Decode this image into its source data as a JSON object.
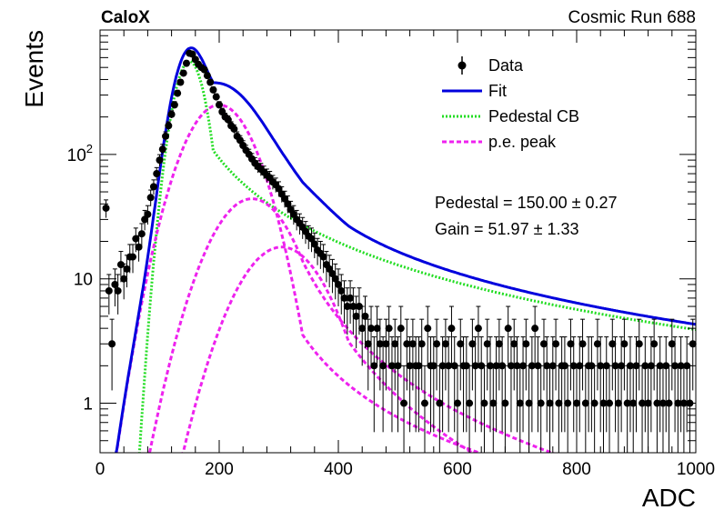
{
  "header": {
    "left_label": "CaloX",
    "right_label": "Cosmic Run 688"
  },
  "annotations": {
    "pedestal": "Pedestal = 150.00 ± 0.27",
    "gain": "Gain = 51.97 ± 1.33"
  },
  "colors": {
    "data": "#000000",
    "fit": "#0000dd",
    "pedestal": "#22dd22",
    "pe": "#ee22ee"
  },
  "chart_data": {
    "type": "scatter",
    "xlabel": "ADC",
    "ylabel": "Events",
    "xlim": [
      0,
      1000
    ],
    "ylim": [
      0.4,
      1000
    ],
    "yscale": "log",
    "grid": false,
    "legend_position": "top-right",
    "x_ticks": [
      "0",
      "200",
      "400",
      "600",
      "800",
      "1000"
    ],
    "y_ticks": [
      {
        "value": 1,
        "label": "1"
      },
      {
        "value": 10,
        "label": "10"
      }
    ],
    "y_tick_power": {
      "value": 100,
      "base": "10",
      "exp": "2"
    },
    "legend": [
      {
        "key": "data",
        "label": "Data"
      },
      {
        "key": "fit",
        "label": "Fit"
      },
      {
        "key": "pedestal",
        "label": "Pedestal CB"
      },
      {
        "key": "pe",
        "label": "p.e. peak"
      }
    ],
    "model": {
      "pedestal_mean": 150.0,
      "pedestal_sigma": 22,
      "pedestal_amplitude": 560,
      "pedestal_tail_offset": 40,
      "pedestal_tail_scale": 100,
      "pedestal_tail_power": 1.5,
      "gain": 51.97,
      "pe_peaks": [
        {
          "mean": 200,
          "sigma": 48,
          "amplitude": 250
        },
        {
          "mean": 255,
          "sigma": 56,
          "amplitude": 44
        },
        {
          "mean": 305,
          "sigma": 60,
          "amplitude": 18
        }
      ],
      "pe_tail_start": 340,
      "pe_tail_scale": 90,
      "pe_tail_power": 1.5
    },
    "series": [
      {
        "key": "data",
        "points": [
          [
            10,
            37
          ],
          [
            15,
            8
          ],
          [
            20,
            3
          ],
          [
            25,
            9
          ],
          [
            30,
            8
          ],
          [
            35,
            13
          ],
          [
            40,
            10
          ],
          [
            45,
            12
          ],
          [
            50,
            15
          ],
          [
            55,
            15
          ],
          [
            60,
            21
          ],
          [
            65,
            18
          ],
          [
            70,
            23
          ],
          [
            75,
            30
          ],
          [
            80,
            33
          ],
          [
            85,
            45
          ],
          [
            90,
            55
          ],
          [
            95,
            70
          ],
          [
            100,
            90
          ],
          [
            105,
            110
          ],
          [
            110,
            140
          ],
          [
            115,
            170
          ],
          [
            120,
            210
          ],
          [
            125,
            250
          ],
          [
            130,
            310
          ],
          [
            135,
            380
          ],
          [
            140,
            450
          ],
          [
            145,
            540
          ],
          [
            150,
            650
          ],
          [
            155,
            640
          ],
          [
            160,
            580
          ],
          [
            165,
            530
          ],
          [
            170,
            500
          ],
          [
            175,
            480
          ],
          [
            180,
            430
          ],
          [
            185,
            380
          ],
          [
            190,
            330
          ],
          [
            195,
            290
          ],
          [
            200,
            250
          ],
          [
            205,
            220
          ],
          [
            210,
            200
          ],
          [
            215,
            190
          ],
          [
            220,
            170
          ],
          [
            225,
            160
          ],
          [
            230,
            140
          ],
          [
            235,
            130
          ],
          [
            240,
            118
          ],
          [
            245,
            108
          ],
          [
            250,
            100
          ],
          [
            255,
            92
          ],
          [
            260,
            85
          ],
          [
            265,
            80
          ],
          [
            270,
            76
          ],
          [
            275,
            72
          ],
          [
            280,
            68
          ],
          [
            285,
            65
          ],
          [
            290,
            60
          ],
          [
            295,
            57
          ],
          [
            300,
            53
          ],
          [
            305,
            48
          ],
          [
            310,
            44
          ],
          [
            315,
            40
          ],
          [
            320,
            36
          ],
          [
            325,
            33
          ],
          [
            330,
            30
          ],
          [
            335,
            28
          ],
          [
            340,
            26
          ],
          [
            345,
            24
          ],
          [
            350,
            22
          ],
          [
            355,
            21
          ],
          [
            360,
            19
          ],
          [
            365,
            17
          ],
          [
            370,
            16
          ],
          [
            375,
            15
          ],
          [
            380,
            13
          ],
          [
            385,
            12
          ],
          [
            390,
            11
          ],
          [
            395,
            10
          ],
          [
            400,
            9
          ],
          [
            405,
            8
          ],
          [
            410,
            7
          ],
          [
            415,
            6
          ],
          [
            420,
            7
          ],
          [
            425,
            6
          ],
          [
            430,
            5
          ],
          [
            435,
            6
          ],
          [
            440,
            4
          ],
          [
            445,
            5
          ],
          [
            450,
            3
          ],
          [
            455,
            4
          ],
          [
            460,
            2
          ],
          [
            465,
            4
          ],
          [
            470,
            3
          ],
          [
            475,
            2
          ],
          [
            480,
            3
          ],
          [
            485,
            4
          ],
          [
            490,
            2
          ],
          [
            495,
            3
          ],
          [
            500,
            2
          ],
          [
            505,
            4
          ],
          [
            510,
            1
          ],
          [
            515,
            3
          ],
          [
            520,
            2
          ],
          [
            525,
            3
          ],
          [
            530,
            2
          ],
          [
            535,
            2
          ],
          [
            540,
            3
          ],
          [
            545,
            1
          ],
          [
            550,
            4
          ],
          [
            555,
            2
          ],
          [
            560,
            2
          ],
          [
            565,
            3
          ],
          [
            570,
            1
          ],
          [
            575,
            2
          ],
          [
            580,
            3
          ],
          [
            585,
            2
          ],
          [
            590,
            4
          ],
          [
            595,
            2
          ],
          [
            600,
            1
          ],
          [
            605,
            3
          ],
          [
            610,
            2
          ],
          [
            615,
            2
          ],
          [
            620,
            1
          ],
          [
            625,
            3
          ],
          [
            630,
            2
          ],
          [
            635,
            4
          ],
          [
            640,
            2
          ],
          [
            645,
            1
          ],
          [
            650,
            3
          ],
          [
            655,
            2
          ],
          [
            660,
            1
          ],
          [
            665,
            2
          ],
          [
            670,
            3
          ],
          [
            675,
            2
          ],
          [
            680,
            1
          ],
          [
            685,
            4
          ],
          [
            690,
            2
          ],
          [
            695,
            3
          ],
          [
            700,
            2
          ],
          [
            705,
            1
          ],
          [
            710,
            2
          ],
          [
            715,
            3
          ],
          [
            720,
            1
          ],
          [
            725,
            2
          ],
          [
            730,
            4
          ],
          [
            735,
            2
          ],
          [
            740,
            1
          ],
          [
            745,
            3
          ],
          [
            750,
            2
          ],
          [
            755,
            1
          ],
          [
            760,
            2
          ],
          [
            765,
            3
          ],
          [
            770,
            1
          ],
          [
            775,
            2
          ],
          [
            780,
            2
          ],
          [
            785,
            1
          ],
          [
            790,
            3
          ],
          [
            795,
            2
          ],
          [
            800,
            1
          ],
          [
            805,
            2
          ],
          [
            810,
            3
          ],
          [
            815,
            1
          ],
          [
            820,
            2
          ],
          [
            825,
            2
          ],
          [
            830,
            1
          ],
          [
            835,
            3
          ],
          [
            840,
            2
          ],
          [
            845,
            1
          ],
          [
            850,
            2
          ],
          [
            855,
            1
          ],
          [
            860,
            3
          ],
          [
            865,
            2
          ],
          [
            870,
            1
          ],
          [
            875,
            2
          ],
          [
            880,
            3
          ],
          [
            885,
            1
          ],
          [
            890,
            2
          ],
          [
            895,
            1
          ],
          [
            900,
            2
          ],
          [
            905,
            3
          ],
          [
            910,
            1
          ],
          [
            915,
            2
          ],
          [
            920,
            1
          ],
          [
            925,
            2
          ],
          [
            930,
            3
          ],
          [
            935,
            1
          ],
          [
            940,
            2
          ],
          [
            945,
            1
          ],
          [
            950,
            2
          ],
          [
            955,
            1
          ],
          [
            960,
            3
          ],
          [
            965,
            2
          ],
          [
            970,
            1
          ],
          [
            975,
            2
          ],
          [
            980,
            1
          ],
          [
            985,
            2
          ],
          [
            990,
            1
          ],
          [
            995,
            3
          ]
        ]
      }
    ]
  }
}
